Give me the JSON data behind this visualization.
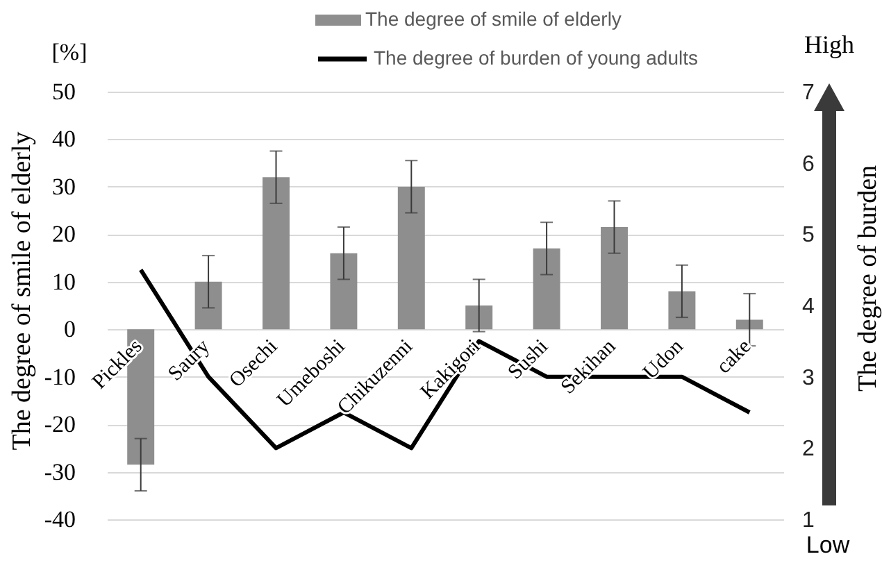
{
  "chart_data": {
    "type": "bar",
    "categories": [
      "Pickles",
      "Saury",
      "Osechi",
      "Umeboshi",
      "Chikuzenni",
      "Kakigori",
      "Sushi",
      "Sekihan",
      "Udon",
      "cake"
    ],
    "series": [
      {
        "name": "The degree of smile of elderly",
        "color": "#8e8e8e",
        "values": [
          -28.5,
          10,
          32,
          16,
          30,
          5,
          17,
          21.5,
          8,
          2
        ],
        "errors": [
          5.5,
          5.5,
          5.5,
          5.5,
          5.5,
          5.5,
          5.5,
          5.5,
          5.5,
          5.5
        ]
      },
      {
        "name": "The degree of burden of young adults",
        "type": "line",
        "color": "#000000",
        "axis": "y2",
        "values": [
          4.5,
          3,
          2,
          2.5,
          2,
          3.5,
          3,
          3,
          3,
          2.5
        ]
      }
    ],
    "ylabel": "The degree of smile of elderly",
    "y2label": "The degree of burden",
    "ylim": [
      -40,
      50
    ],
    "yticks": [
      -40,
      -30,
      -20,
      -10,
      0,
      10,
      20,
      30,
      40,
      50
    ],
    "y2lim": [
      1,
      7
    ],
    "y2ticks": [
      1,
      2,
      3,
      4,
      5,
      6,
      7
    ],
    "grid": "y",
    "legend": "top",
    "annotations": [
      "[%]",
      "High",
      "Low"
    ]
  }
}
